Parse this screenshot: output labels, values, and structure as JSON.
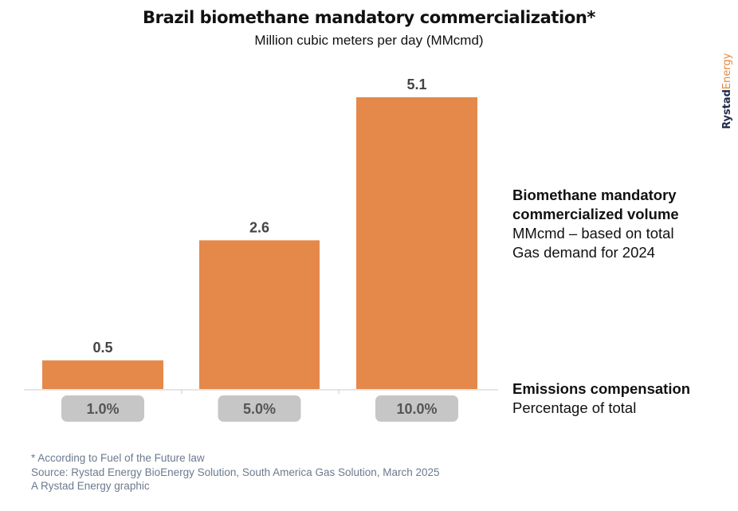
{
  "title": "Brazil biomethane mandatory commercialization*",
  "subtitle": "Million cubic meters per day (MMcmd)",
  "colors": {
    "bar": "#e5894a",
    "pill": "#c6c6c6",
    "pill_text": "#555555",
    "axis": "#cccccc",
    "footer": "#6b7a90"
  },
  "chart_data": {
    "type": "bar",
    "categories": [
      "1.0%",
      "5.0%",
      "10.0%"
    ],
    "values": [
      0.5,
      2.6,
      5.1
    ],
    "value_labels": [
      "0.5",
      "2.6",
      "5.1"
    ],
    "title": "Brazil biomethane mandatory commercialization*",
    "subtitle": "Million cubic meters per day (MMcmd)",
    "ylim": [
      0,
      5.1
    ],
    "grid": false,
    "legend": "right"
  },
  "legend": {
    "volume_heading_1": "Biomethane mandatory",
    "volume_heading_2": "commercialized volume",
    "volume_desc_1": "MMcmd – based on total",
    "volume_desc_2": "Gas demand for 2024",
    "emissions_heading": "Emissions compensation",
    "emissions_desc": "Percentage of total"
  },
  "footer": {
    "note": "* According to Fuel of the Future law",
    "source": "Source: Rystad Energy BioEnergy Solution, South America Gas Solution, March 2025",
    "credit": "A Rystad Energy graphic"
  },
  "brand": {
    "part1": "Rystad",
    "part2": "Energy"
  }
}
